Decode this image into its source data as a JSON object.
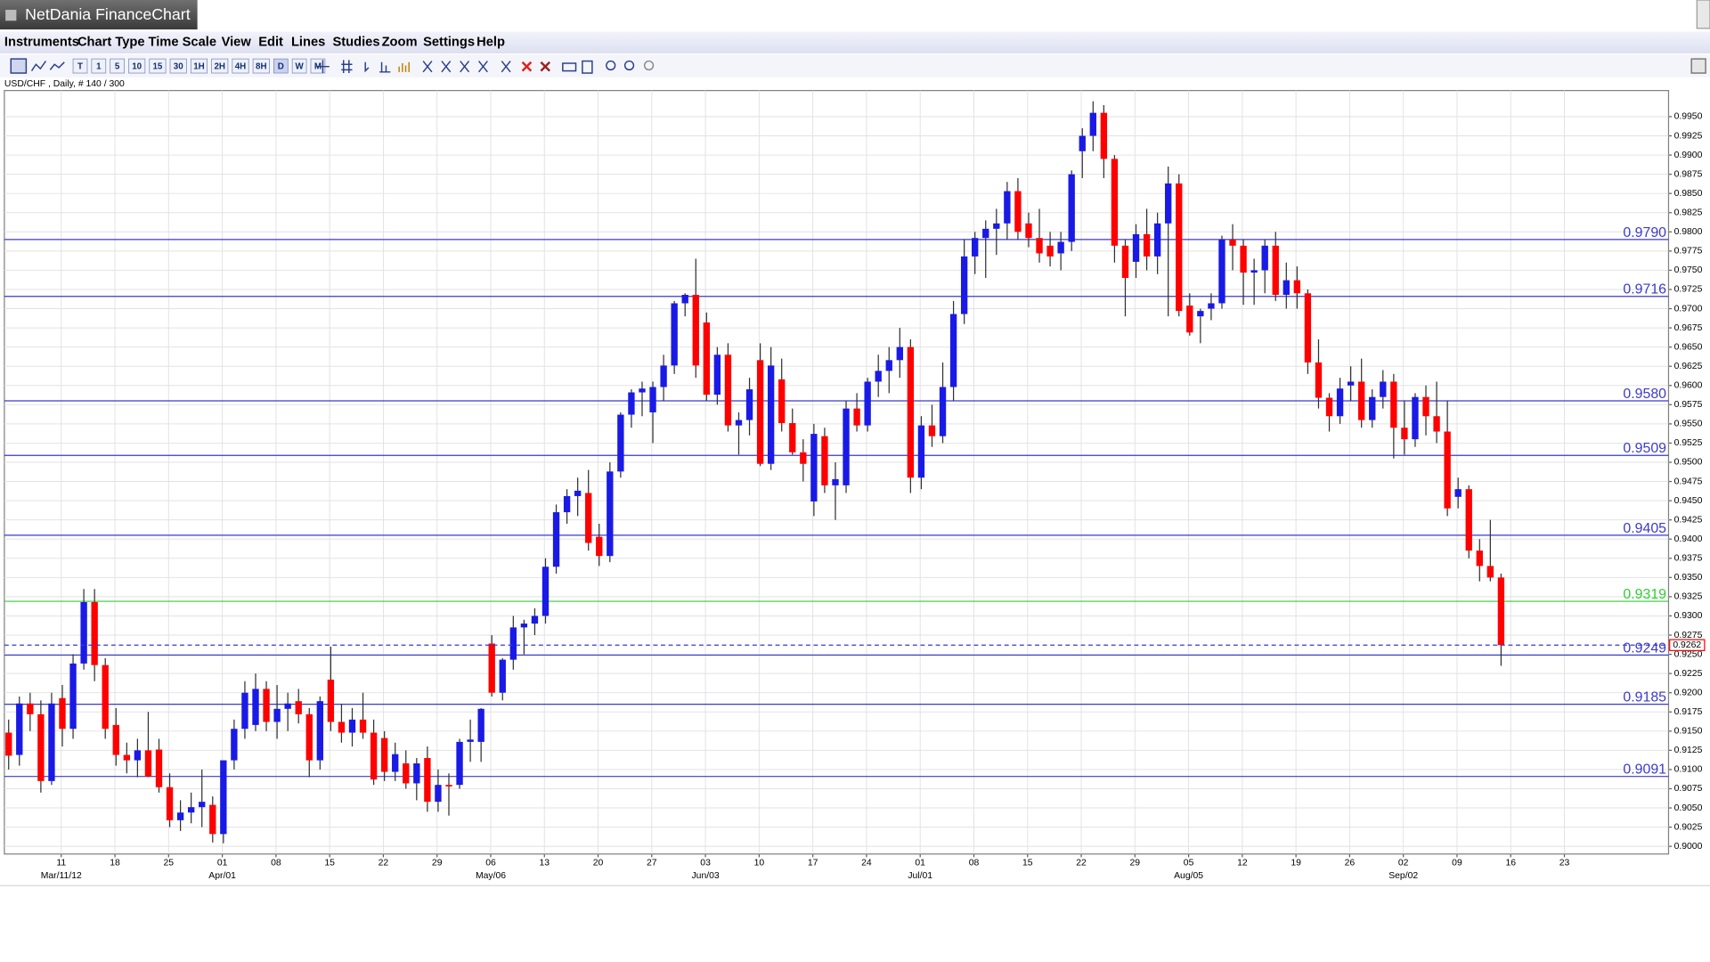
{
  "window": {
    "title": "NetDania FinanceChart"
  },
  "menu": [
    "Instruments",
    "Chart Type",
    "Time Scale",
    "View",
    "Edit",
    "Lines",
    "Studies",
    "Zoom",
    "Settings",
    "Help"
  ],
  "toolbar": {
    "timeframes": [
      "T",
      "1",
      "5",
      "10",
      "15",
      "30",
      "1H",
      "2H",
      "4H",
      "8H",
      "D",
      "W",
      "M"
    ]
  },
  "chart_data": {
    "type": "candlestick",
    "info": "USD/CHF , Daily, # 140 / 300",
    "up_color": "#1a1ae6",
    "down_color": "#ff0000",
    "wick_color": "#303030",
    "grid": true,
    "categories": [
      null,
      null,
      null,
      null,
      null,
      "11",
      null,
      null,
      null,
      null,
      "18",
      null,
      null,
      null,
      null,
      "25",
      null,
      null,
      null,
      null,
      "01",
      null,
      null,
      null,
      null,
      "08",
      null,
      null,
      null,
      null,
      "15",
      null,
      null,
      null,
      null,
      "22",
      null,
      null,
      null,
      null,
      "29",
      null,
      null,
      null,
      null,
      "06",
      null,
      null,
      null,
      null,
      "13",
      null,
      null,
      null,
      null,
      "20",
      null,
      null,
      null,
      null,
      "27",
      null,
      null,
      null,
      null,
      "03",
      null,
      null,
      null,
      null,
      "10",
      null,
      null,
      null,
      null,
      "17",
      null,
      null,
      null,
      null,
      "24",
      null,
      null,
      null,
      null,
      "01",
      null,
      null,
      null,
      null,
      "08",
      null,
      null,
      null,
      null,
      "15",
      null,
      null,
      null,
      null,
      "22",
      null,
      null,
      null,
      null,
      "29",
      null,
      null,
      null,
      null,
      "05",
      null,
      null,
      null,
      null,
      "12",
      null,
      null,
      null,
      null,
      "19",
      null,
      null,
      null,
      null,
      "26",
      null,
      null,
      null,
      null,
      "02",
      null,
      null,
      null,
      null,
      "09",
      null,
      null,
      null,
      null,
      "16",
      null,
      null,
      null,
      null,
      "23",
      null,
      null,
      null,
      null,
      null,
      null,
      null,
      null,
      null
    ],
    "months": [
      null,
      null,
      null,
      null,
      null,
      "Mar/11/12",
      null,
      null,
      null,
      null,
      null,
      null,
      null,
      null,
      null,
      null,
      null,
      null,
      null,
      null,
      "Apr/01",
      null,
      null,
      null,
      null,
      null,
      null,
      null,
      null,
      null,
      null,
      null,
      null,
      null,
      null,
      null,
      null,
      null,
      null,
      null,
      null,
      null,
      null,
      null,
      null,
      "May/06",
      null,
      null,
      null,
      null,
      null,
      null,
      null,
      null,
      null,
      null,
      null,
      null,
      null,
      null,
      null,
      null,
      null,
      null,
      null,
      "Jun/03",
      null,
      null,
      null,
      null,
      null,
      null,
      null,
      null,
      null,
      null,
      null,
      null,
      null,
      null,
      null,
      null,
      null,
      null,
      null,
      "Jul/01",
      null,
      null,
      null,
      null,
      null,
      null,
      null,
      null,
      null,
      null,
      null,
      null,
      null,
      null,
      null,
      null,
      null,
      null,
      null,
      null,
      null,
      null,
      null,
      null,
      "Aug/05",
      null,
      null,
      null,
      null,
      null,
      null,
      null,
      null,
      null,
      null,
      null,
      null,
      null,
      null,
      null,
      null,
      null,
      null,
      null,
      "Sep/02",
      null,
      null,
      null,
      null,
      null,
      null,
      null,
      null,
      null,
      null,
      null,
      null,
      null,
      null,
      null,
      null,
      null,
      null,
      null,
      null,
      null,
      null,
      null,
      null
    ],
    "candles": [
      [
        0.9148,
        0.9165,
        0.91,
        0.9118
      ],
      [
        0.9119,
        0.9195,
        0.9105,
        0.9186
      ],
      [
        0.9186,
        0.92,
        0.915,
        0.9172
      ],
      [
        0.9172,
        0.919,
        0.907,
        0.9085
      ],
      [
        0.9085,
        0.92,
        0.908,
        0.9186
      ],
      [
        0.9193,
        0.921,
        0.913,
        0.9153
      ],
      [
        0.9153,
        0.925,
        0.914,
        0.9238
      ],
      [
        0.9238,
        0.9335,
        0.923,
        0.9318
      ],
      [
        0.9318,
        0.9335,
        0.9215,
        0.9236
      ],
      [
        0.9236,
        0.9245,
        0.914,
        0.9153
      ],
      [
        0.9158,
        0.918,
        0.9105,
        0.9119
      ],
      [
        0.9119,
        0.9135,
        0.9095,
        0.9112
      ],
      [
        0.9112,
        0.914,
        0.909,
        0.9125
      ],
      [
        0.9125,
        0.9175,
        0.909,
        0.9091
      ],
      [
        0.9126,
        0.914,
        0.907,
        0.9077
      ],
      [
        0.9077,
        0.9095,
        0.9025,
        0.9034
      ],
      [
        0.9034,
        0.906,
        0.902,
        0.9044
      ],
      [
        0.9044,
        0.907,
        0.903,
        0.9051
      ],
      [
        0.9051,
        0.91,
        0.9025,
        0.9058
      ],
      [
        0.9054,
        0.9065,
        0.9005,
        0.9016
      ],
      [
        0.9016,
        0.911,
        0.9004,
        0.9112
      ],
      [
        0.9112,
        0.9165,
        0.91,
        0.9153
      ],
      [
        0.9153,
        0.9215,
        0.914,
        0.92
      ],
      [
        0.9158,
        0.9225,
        0.915,
        0.9205
      ],
      [
        0.9205,
        0.9215,
        0.915,
        0.9162
      ],
      [
        0.9162,
        0.921,
        0.914,
        0.9179
      ],
      [
        0.9179,
        0.92,
        0.915,
        0.9186
      ],
      [
        0.9189,
        0.9205,
        0.916,
        0.9172
      ],
      [
        0.9172,
        0.918,
        0.909,
        0.9112
      ],
      [
        0.9112,
        0.9195,
        0.91,
        0.9189
      ],
      [
        0.9217,
        0.926,
        0.915,
        0.9162
      ],
      [
        0.9162,
        0.9185,
        0.9135,
        0.9148
      ],
      [
        0.9148,
        0.918,
        0.913,
        0.9165
      ],
      [
        0.9165,
        0.92,
        0.914,
        0.9148
      ],
      [
        0.9148,
        0.9165,
        0.908,
        0.9087
      ],
      [
        0.9141,
        0.915,
        0.9085,
        0.9097
      ],
      [
        0.9097,
        0.9135,
        0.9085,
        0.912
      ],
      [
        0.9108,
        0.9125,
        0.9075,
        0.9082
      ],
      [
        0.9082,
        0.9115,
        0.906,
        0.9108
      ],
      [
        0.9115,
        0.913,
        0.9045,
        0.9058
      ],
      [
        0.9058,
        0.91,
        0.9045,
        0.908
      ],
      [
        0.908,
        0.9095,
        0.904,
        0.9078
      ],
      [
        0.908,
        0.914,
        0.9075,
        0.9136
      ],
      [
        0.9136,
        0.9165,
        0.911,
        0.9139
      ],
      [
        0.9136,
        0.918,
        0.911,
        0.9179
      ],
      [
        0.9264,
        0.9275,
        0.9195,
        0.92
      ],
      [
        0.92,
        0.9245,
        0.919,
        0.9243
      ],
      [
        0.9243,
        0.93,
        0.923,
        0.9285
      ],
      [
        0.9285,
        0.9295,
        0.925,
        0.929
      ],
      [
        0.929,
        0.931,
        0.9275,
        0.93
      ],
      [
        0.93,
        0.9375,
        0.929,
        0.9364
      ],
      [
        0.9364,
        0.9445,
        0.9355,
        0.9435
      ],
      [
        0.9435,
        0.9465,
        0.942,
        0.9456
      ],
      [
        0.9456,
        0.948,
        0.943,
        0.9463
      ],
      [
        0.946,
        0.949,
        0.9385,
        0.9395
      ],
      [
        0.9403,
        0.942,
        0.9365,
        0.9378
      ],
      [
        0.9378,
        0.95,
        0.937,
        0.9488
      ],
      [
        0.9488,
        0.9565,
        0.948,
        0.9562
      ],
      [
        0.9562,
        0.9595,
        0.9545,
        0.9591
      ],
      [
        0.9591,
        0.9605,
        0.956,
        0.9596
      ],
      [
        0.9565,
        0.9605,
        0.9525,
        0.9598
      ],
      [
        0.9598,
        0.964,
        0.958,
        0.9626
      ],
      [
        0.9626,
        0.971,
        0.9615,
        0.9707
      ],
      [
        0.9707,
        0.972,
        0.969,
        0.9718
      ],
      [
        0.9718,
        0.9765,
        0.961,
        0.9626
      ],
      [
        0.9682,
        0.9695,
        0.958,
        0.9588
      ],
      [
        0.9588,
        0.965,
        0.9575,
        0.964
      ],
      [
        0.964,
        0.9655,
        0.954,
        0.9548
      ],
      [
        0.9548,
        0.9565,
        0.951,
        0.9555
      ],
      [
        0.9555,
        0.961,
        0.9535,
        0.9595
      ],
      [
        0.9633,
        0.9655,
        0.9495,
        0.9498
      ],
      [
        0.9498,
        0.965,
        0.949,
        0.9626
      ],
      [
        0.9608,
        0.9635,
        0.954,
        0.9551
      ],
      [
        0.9551,
        0.957,
        0.951,
        0.9513
      ],
      [
        0.9513,
        0.953,
        0.9475,
        0.9498
      ],
      [
        0.9449,
        0.955,
        0.943,
        0.9537
      ],
      [
        0.9534,
        0.9545,
        0.946,
        0.947
      ],
      [
        0.947,
        0.95,
        0.9425,
        0.9478
      ],
      [
        0.947,
        0.958,
        0.946,
        0.957
      ],
      [
        0.957,
        0.959,
        0.954,
        0.9548
      ],
      [
        0.9548,
        0.961,
        0.954,
        0.9605
      ],
      [
        0.9605,
        0.964,
        0.9585,
        0.9619
      ],
      [
        0.9619,
        0.965,
        0.959,
        0.9633
      ],
      [
        0.9633,
        0.9675,
        0.961,
        0.965
      ],
      [
        0.965,
        0.966,
        0.946,
        0.948
      ],
      [
        0.948,
        0.956,
        0.9465,
        0.9548
      ],
      [
        0.9548,
        0.9575,
        0.952,
        0.9534
      ],
      [
        0.9534,
        0.963,
        0.9525,
        0.9598
      ],
      [
        0.9598,
        0.971,
        0.958,
        0.9693
      ],
      [
        0.9693,
        0.979,
        0.968,
        0.9768
      ],
      [
        0.9768,
        0.98,
        0.9745,
        0.9792
      ],
      [
        0.9792,
        0.9815,
        0.974,
        0.9804
      ],
      [
        0.9804,
        0.983,
        0.977,
        0.9811
      ],
      [
        0.9811,
        0.9865,
        0.979,
        0.9853
      ],
      [
        0.9853,
        0.987,
        0.979,
        0.98
      ],
      [
        0.9811,
        0.9825,
        0.978,
        0.9792
      ],
      [
        0.9792,
        0.983,
        0.976,
        0.9772
      ],
      [
        0.9782,
        0.98,
        0.9755,
        0.9768
      ],
      [
        0.9772,
        0.98,
        0.975,
        0.9787
      ],
      [
        0.9787,
        0.988,
        0.9775,
        0.9875
      ],
      [
        0.9905,
        0.9935,
        0.987,
        0.9925
      ],
      [
        0.9925,
        0.997,
        0.9905,
        0.9955
      ],
      [
        0.9955,
        0.9965,
        0.987,
        0.9895
      ],
      [
        0.9895,
        0.99,
        0.976,
        0.9782
      ],
      [
        0.9782,
        0.979,
        0.969,
        0.974
      ],
      [
        0.9761,
        0.981,
        0.974,
        0.9797
      ],
      [
        0.9797,
        0.983,
        0.975,
        0.9768
      ],
      [
        0.9768,
        0.9825,
        0.9745,
        0.9811
      ],
      [
        0.9811,
        0.9885,
        0.969,
        0.9863
      ],
      [
        0.9863,
        0.9875,
        0.969,
        0.9697
      ],
      [
        0.9704,
        0.972,
        0.9665,
        0.9669
      ],
      [
        0.969,
        0.97,
        0.9655,
        0.9697
      ],
      [
        0.97,
        0.972,
        0.9685,
        0.9707
      ],
      [
        0.9707,
        0.9795,
        0.97,
        0.979
      ],
      [
        0.979,
        0.981,
        0.975,
        0.9782
      ],
      [
        0.9782,
        0.979,
        0.9705,
        0.9747
      ],
      [
        0.9747,
        0.9765,
        0.9705,
        0.975
      ],
      [
        0.975,
        0.979,
        0.972,
        0.9782
      ],
      [
        0.9782,
        0.98,
        0.971,
        0.9718
      ],
      [
        0.9718,
        0.976,
        0.97,
        0.9737
      ],
      [
        0.9737,
        0.9755,
        0.97,
        0.972
      ],
      [
        0.972,
        0.9725,
        0.9615,
        0.963
      ],
      [
        0.963,
        0.966,
        0.957,
        0.9584
      ],
      [
        0.9584,
        0.959,
        0.954,
        0.956
      ],
      [
        0.956,
        0.961,
        0.955,
        0.9596
      ],
      [
        0.96,
        0.9625,
        0.958,
        0.9605
      ],
      [
        0.9605,
        0.9635,
        0.9545,
        0.9555
      ],
      [
        0.9555,
        0.9595,
        0.9545,
        0.9585
      ],
      [
        0.9585,
        0.962,
        0.957,
        0.9605
      ],
      [
        0.9605,
        0.9615,
        0.9505,
        0.9545
      ],
      [
        0.9545,
        0.958,
        0.951,
        0.953
      ],
      [
        0.953,
        0.959,
        0.952,
        0.9585
      ],
      [
        0.9585,
        0.96,
        0.9535,
        0.956
      ],
      [
        0.956,
        0.9605,
        0.9525,
        0.954
      ],
      [
        0.954,
        0.958,
        0.943,
        0.944
      ],
      [
        0.9455,
        0.948,
        0.944,
        0.9465
      ],
      [
        0.9465,
        0.947,
        0.9375,
        0.9385
      ],
      [
        0.9385,
        0.94,
        0.9345,
        0.9365
      ],
      [
        0.9365,
        0.9425,
        0.9345,
        0.935
      ],
      [
        0.935,
        0.9355,
        0.9235,
        0.9262
      ]
    ],
    "ylim": [
      0.899,
      0.9984
    ],
    "yticks": [
      {
        "value": 0.9,
        "label": "0.9000"
      },
      {
        "value": 0.9025,
        "label": "0.9025"
      },
      {
        "value": 0.905,
        "label": "0.9050"
      },
      {
        "value": 0.9075,
        "label": "0.9075"
      },
      {
        "value": 0.91,
        "label": "0.9100"
      },
      {
        "value": 0.9125,
        "label": "0.9125"
      },
      {
        "value": 0.915,
        "label": "0.9150"
      },
      {
        "value": 0.9175,
        "label": "0.9175"
      },
      {
        "value": 0.92,
        "label": "0.9200"
      },
      {
        "value": 0.9225,
        "label": "0.9225"
      },
      {
        "value": 0.925,
        "label": "0.9250"
      },
      {
        "value": 0.9275,
        "label": "0.9275"
      },
      {
        "value": 0.93,
        "label": "0.9300"
      },
      {
        "value": 0.9325,
        "label": "0.9325"
      },
      {
        "value": 0.935,
        "label": "0.9350"
      },
      {
        "value": 0.9375,
        "label": "0.9375"
      },
      {
        "value": 0.94,
        "label": "0.9400"
      },
      {
        "value": 0.9425,
        "label": "0.9425"
      },
      {
        "value": 0.945,
        "label": "0.9450"
      },
      {
        "value": 0.9475,
        "label": "0.9475"
      },
      {
        "value": 0.95,
        "label": "0.9500"
      },
      {
        "value": 0.9525,
        "label": "0.9525"
      },
      {
        "value": 0.955,
        "label": "0.9550"
      },
      {
        "value": 0.9575,
        "label": "0.9575"
      },
      {
        "value": 0.96,
        "label": "0.9600"
      },
      {
        "value": 0.9625,
        "label": "0.9625"
      },
      {
        "value": 0.965,
        "label": "0.9650"
      },
      {
        "value": 0.9675,
        "label": "0.9675"
      },
      {
        "value": 0.97,
        "label": "0.9700"
      },
      {
        "value": 0.9725,
        "label": "0.9725"
      },
      {
        "value": 0.975,
        "label": "0.9750"
      },
      {
        "value": 0.9775,
        "label": "0.9775"
      },
      {
        "value": 0.98,
        "label": "0.9800"
      },
      {
        "value": 0.9825,
        "label": "0.9825"
      },
      {
        "value": 0.985,
        "label": "0.9850"
      },
      {
        "value": 0.9875,
        "label": "0.9875"
      },
      {
        "value": 0.99,
        "label": "0.9900"
      },
      {
        "value": 0.9925,
        "label": "0.9925"
      },
      {
        "value": 0.995,
        "label": "0.9950"
      }
    ],
    "levels": [
      {
        "value": 0.979,
        "label": "0.9790",
        "color": "#3a3acc"
      },
      {
        "value": 0.9716,
        "label": "0.9716",
        "color": "#3a3acc"
      },
      {
        "value": 0.958,
        "label": "0.9580",
        "color": "#3a3acc"
      },
      {
        "value": 0.9509,
        "label": "0.9509",
        "color": "#3a3acc"
      },
      {
        "value": 0.9405,
        "label": "0.9405",
        "color": "#3a3acc"
      },
      {
        "value": 0.9319,
        "label": "0.9319",
        "color": "#33cc33"
      },
      {
        "value": 0.9249,
        "label": "0.9249",
        "color": "#3a3acc"
      },
      {
        "value": 0.9185,
        "label": "0.9185",
        "color": "#3a3acc"
      },
      {
        "value": 0.9091,
        "label": "0.9091",
        "color": "#3a3acc"
      }
    ],
    "last": {
      "value": 0.9262,
      "label": "0.9262",
      "color": "#ff0000",
      "line_color": "#3a3acc"
    }
  }
}
